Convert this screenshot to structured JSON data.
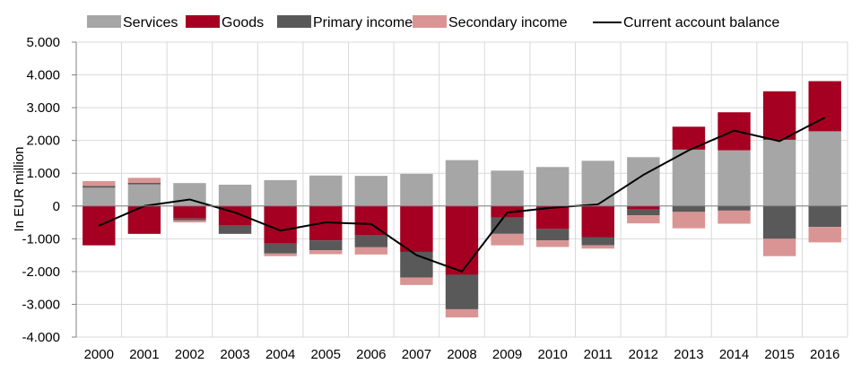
{
  "chart_data": {
    "type": "bar",
    "stacked": true,
    "ylabel": "In EUR million",
    "ylim": [
      -4000,
      5000
    ],
    "ytick_step": 1000,
    "ytick_labels": [
      "-4.000",
      "-3.000",
      "-2.000",
      "-1.000",
      "0",
      "1.000",
      "2.000",
      "3.000",
      "4.000",
      "5.000"
    ],
    "grid": true,
    "legend_position": "top",
    "categories": [
      "2000",
      "2001",
      "2002",
      "2003",
      "2004",
      "2005",
      "2006",
      "2007",
      "2008",
      "2009",
      "2010",
      "2011",
      "2012",
      "2013",
      "2014",
      "2015",
      "2016"
    ],
    "series": [
      {
        "name": "Services",
        "color": "#a6a6a6",
        "values": [
          560,
          660,
          700,
          650,
          790,
          930,
          920,
          980,
          1400,
          1080,
          1190,
          1380,
          1490,
          1720,
          1700,
          2020,
          2280
        ]
      },
      {
        "name": "Goods",
        "color": "#a50021",
        "values": [
          -1200,
          -850,
          -380,
          -600,
          -1150,
          -1050,
          -900,
          -1400,
          -2100,
          -350,
          -700,
          -950,
          -100,
          700,
          1160,
          1480,
          1530
        ]
      },
      {
        "name": "Primary income",
        "color": "#595959",
        "values": [
          50,
          50,
          -60,
          -250,
          -300,
          -300,
          -360,
          -780,
          -1050,
          -500,
          -350,
          -250,
          -180,
          -180,
          -140,
          -1000,
          -640
        ]
      },
      {
        "name": "Secondary income",
        "color": "#d99594",
        "values": [
          150,
          150,
          -60,
          0,
          -80,
          -120,
          -220,
          -230,
          -250,
          -350,
          -200,
          -100,
          -250,
          -500,
          -400,
          -530,
          -470
        ]
      }
    ],
    "line": {
      "name": "Current account balance",
      "color": "#000000",
      "values": [
        -600,
        0,
        200,
        -200,
        -750,
        -500,
        -550,
        -1500,
        -2000,
        -200,
        -50,
        50,
        950,
        1700,
        2300,
        1980,
        2700
      ]
    }
  }
}
